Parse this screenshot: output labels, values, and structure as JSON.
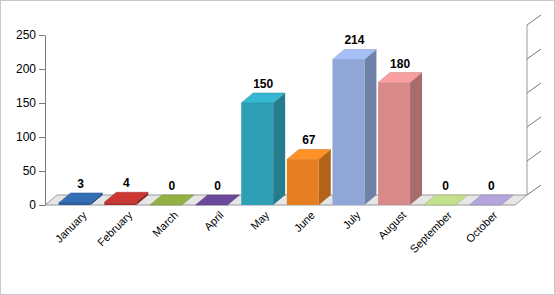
{
  "chart_data": {
    "type": "bar",
    "categories": [
      "January",
      "February",
      "March",
      "April",
      "May",
      "June",
      "July",
      "August",
      "September",
      "October"
    ],
    "values": [
      3,
      4,
      0,
      0,
      150,
      67,
      214,
      180,
      0,
      0
    ],
    "colors": [
      "#2c5f9e",
      "#b0302c",
      "#7f9a3a",
      "#5d3f86",
      "#2f9fb5",
      "#e67e22",
      "#8fa6d6",
      "#d88a8a",
      "#a9c27a",
      "#9c8fbf"
    ],
    "ylim": [
      0,
      250
    ],
    "yticks": [
      0,
      50,
      100,
      150,
      200,
      250
    ],
    "data_labels": true,
    "grid": false
  }
}
